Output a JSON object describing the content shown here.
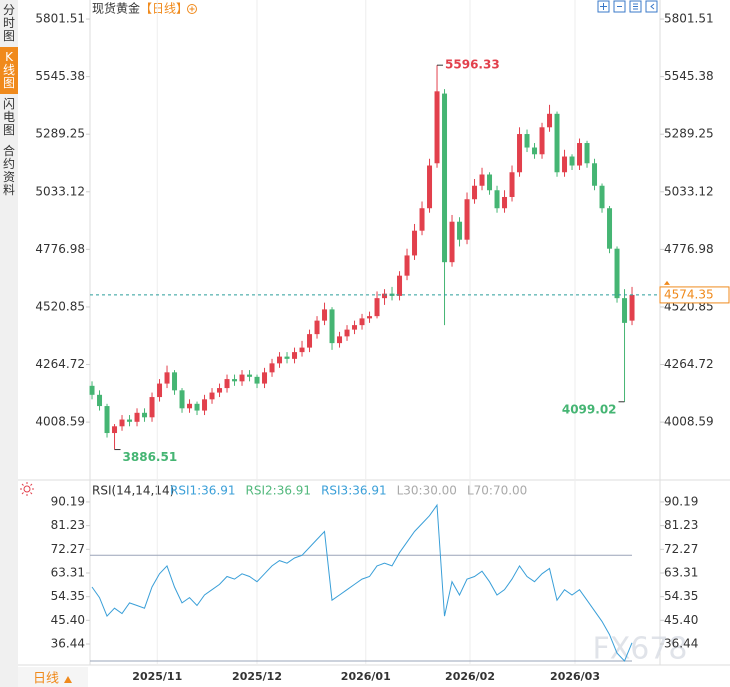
{
  "sidebar": {
    "tabs": [
      "分时图",
      "K线图",
      "闪电图",
      "合约资料"
    ],
    "active": 1
  },
  "header": {
    "symbol": "现货黄金",
    "period": "【日线】"
  },
  "period_tab": "日线",
  "watermark": "FX678",
  "chart_data": [
    {
      "type": "candlestick",
      "up_color": "#e2404c",
      "down_color": "#45b573",
      "ylim": [
        3760,
        5864
      ],
      "yticks": [
        5801.51,
        5545.38,
        5289.25,
        5033.12,
        4776.98,
        4520.85,
        4264.72,
        4008.59
      ],
      "open": [
        4170,
        4130,
        4080,
        3960,
        3990,
        4020,
        4010,
        4050,
        4030,
        4120,
        4180,
        4230,
        4150,
        4070,
        4090,
        4060,
        4110,
        4140,
        4160,
        4200,
        4190,
        4220,
        4210,
        4180,
        4230,
        4270,
        4300,
        4290,
        4320,
        4340,
        4400,
        4460,
        4510,
        4360,
        4390,
        4420,
        4440,
        4470,
        4480,
        4560,
        4580,
        4570,
        4660,
        4750,
        4860,
        4960,
        5160,
        5470,
        4720,
        4900,
        4820,
        5000,
        5060,
        5110,
        5040,
        4960,
        5010,
        5120,
        5290,
        5230,
        5200,
        5320,
        5380,
        5120,
        5190,
        5150,
        5250,
        5160,
        5060,
        4960,
        4780,
        4560,
        4460
      ],
      "high": [
        4190,
        4150,
        4090,
        4000,
        4040,
        4040,
        4070,
        4070,
        4140,
        4200,
        4260,
        4240,
        4160,
        4110,
        4100,
        4130,
        4160,
        4180,
        4220,
        4220,
        4240,
        4240,
        4220,
        4250,
        4290,
        4320,
        4320,
        4340,
        4370,
        4420,
        4480,
        4540,
        4520,
        4410,
        4440,
        4460,
        4490,
        4500,
        4590,
        4600,
        4610,
        4680,
        4780,
        4890,
        4990,
        5180,
        5596.33,
        5490,
        4930,
        4920,
        5030,
        5090,
        5140,
        5120,
        5060,
        5040,
        5150,
        5320,
        5310,
        5250,
        5340,
        5420,
        5390,
        5220,
        5200,
        5270,
        5260,
        5180,
        5070,
        4970,
        4790,
        4600,
        4610
      ],
      "low": [
        4110,
        4060,
        3940,
        3886.51,
        3970,
        3990,
        3990,
        4010,
        4010,
        4100,
        4160,
        4130,
        4050,
        4050,
        4040,
        4040,
        4090,
        4120,
        4140,
        4170,
        4170,
        4190,
        4160,
        4160,
        4210,
        4250,
        4270,
        4270,
        4300,
        4320,
        4380,
        4440,
        4330,
        4340,
        4370,
        4400,
        4420,
        4450,
        4470,
        4530,
        4550,
        4550,
        4640,
        4730,
        4840,
        4940,
        5140,
        4440,
        4700,
        4790,
        4800,
        4980,
        5040,
        5020,
        4940,
        4940,
        4990,
        5100,
        5210,
        5180,
        5180,
        5300,
        5100,
        5100,
        5130,
        5130,
        5140,
        5040,
        4940,
        4760,
        4540,
        4099.02,
        4440
      ],
      "close": [
        4130,
        4080,
        3960,
        3990,
        4020,
        4010,
        4050,
        4030,
        4120,
        4180,
        4230,
        4150,
        4070,
        4090,
        4060,
        4110,
        4140,
        4160,
        4200,
        4190,
        4220,
        4210,
        4180,
        4230,
        4270,
        4300,
        4290,
        4320,
        4340,
        4400,
        4460,
        4510,
        4360,
        4390,
        4420,
        4440,
        4470,
        4480,
        4560,
        4580,
        4570,
        4660,
        4750,
        4860,
        4960,
        5150,
        5480,
        4720,
        4900,
        4820,
        5000,
        5060,
        5110,
        5040,
        4960,
        5010,
        5120,
        5290,
        5230,
        5200,
        5320,
        5380,
        5120,
        5190,
        5150,
        5250,
        5160,
        5060,
        4960,
        4780,
        4560,
        4450,
        4574.35
      ]
    },
    {
      "type": "line",
      "title": "RSI(14,14,14)",
      "legend_items": [
        {
          "text": "RSI1:36.91",
          "color": "#3a9fd8"
        },
        {
          "text": "RSI2:36.91",
          "color": "#52b87c"
        },
        {
          "text": "RSI3:36.91",
          "color": "#3a9fd8"
        },
        {
          "text": "L30:30.00",
          "color": "#aaaaaa"
        },
        {
          "text": "L70:70.00",
          "color": "#aaaaaa"
        }
      ],
      "levels": [
        30,
        70
      ],
      "level_color": "#9aa4b8",
      "ylim": [
        28.5,
        96.6
      ],
      "yticks": [
        90.19,
        81.23,
        72.27,
        63.31,
        54.35,
        {
          "value": 45.4,
          "label": "45.40"
        },
        36.44
      ],
      "xlim": [
        -0.27,
        75.73
      ],
      "xticks": [
        {
          "value": 8.7,
          "label": "2025/11"
        },
        {
          "value": 22,
          "label": "2025/12"
        },
        {
          "value": 36.5,
          "label": "2026/01"
        },
        {
          "value": 50.4,
          "label": "2026/02"
        },
        {
          "value": 64.4,
          "label": "2026/03"
        }
      ],
      "series": [
        {
          "name": "RSI1",
          "color": "#3a9fd8",
          "values": [
            58,
            54,
            47,
            50,
            48,
            52,
            51,
            50,
            58,
            63,
            66,
            58,
            52,
            54,
            51,
            55,
            57,
            59,
            62,
            61,
            63,
            62,
            60,
            63,
            66,
            68,
            67,
            69,
            70,
            73,
            76,
            79,
            53,
            55,
            57,
            59,
            61,
            62,
            66,
            67,
            66,
            71,
            75,
            79,
            82,
            85,
            89,
            47,
            60,
            55,
            61,
            62,
            64,
            60,
            55,
            57,
            61,
            66,
            62,
            60,
            63,
            65,
            53,
            57,
            55,
            57,
            53,
            49,
            45,
            40,
            33,
            30,
            36.91
          ]
        }
      ]
    }
  ]
}
